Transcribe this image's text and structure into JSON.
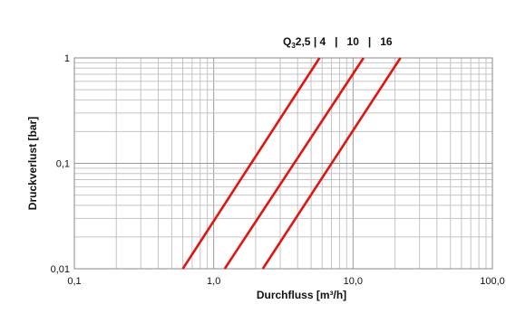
{
  "chart_data": {
    "type": "line",
    "title": "",
    "xlabel": "Durchfluss [m³/h]",
    "ylabel": "Druckverlust [bar]",
    "x_scale": "log",
    "y_scale": "log",
    "xlim": [
      0.1,
      100
    ],
    "ylim": [
      0.01,
      1
    ],
    "grid": true,
    "x_ticks": [
      {
        "value": 0.1,
        "label": "0,1"
      },
      {
        "value": 1,
        "label": "1,0"
      },
      {
        "value": 10,
        "label": "10,0"
      },
      {
        "value": 100,
        "label": "100,0"
      }
    ],
    "y_ticks": [
      {
        "value": 0.01,
        "label": "0,01"
      },
      {
        "value": 0.1,
        "label": "0,1"
      },
      {
        "value": 1,
        "label": "1"
      }
    ],
    "legend": {
      "prefix": "Q",
      "prefix_sub": "3",
      "text": "2,5 | 4   |   10   |   16",
      "placement": "top-right"
    },
    "line_color": "#e3140f",
    "series": [
      {
        "x": [
          0.6,
          5.75
        ],
        "y": [
          0.01,
          1
        ]
      },
      {
        "x": [
          1.2,
          11.9
        ],
        "y": [
          0.01,
          1
        ]
      },
      {
        "x": [
          2.25,
          21.9
        ],
        "y": [
          0.01,
          1
        ]
      }
    ]
  }
}
